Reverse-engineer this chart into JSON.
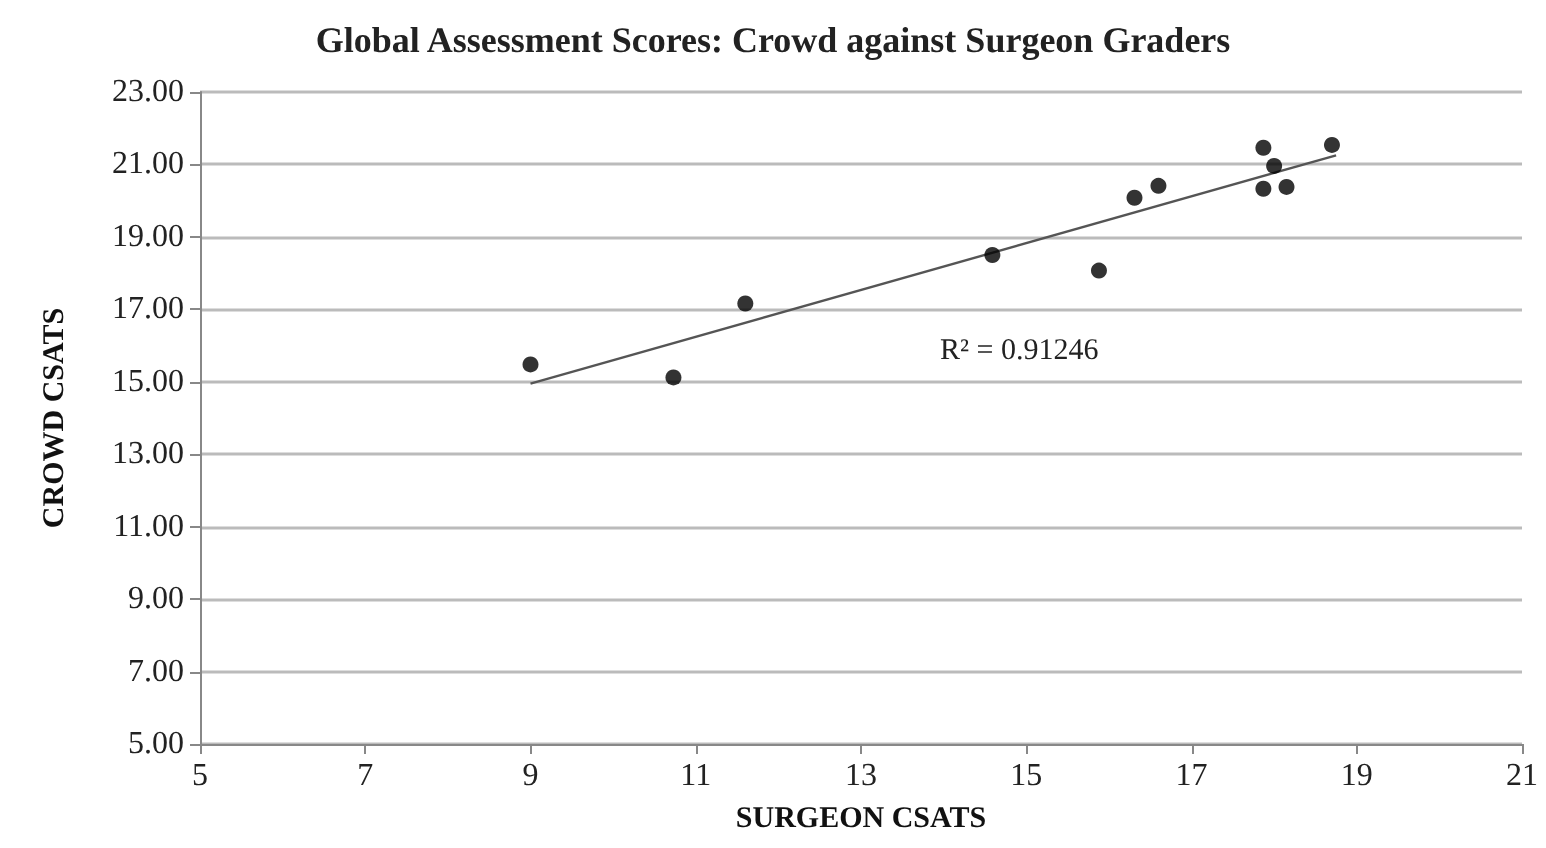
{
  "chart_data": {
    "type": "scatter",
    "title": "Global Assessment Scores: Crowd against Surgeon Graders",
    "xlabel": "SURGEON CSATS",
    "ylabel": "CROWD CSATS",
    "series": [
      {
        "color": "#000000",
        "marker": "circle",
        "x": [
          9.0,
          10.73,
          11.6,
          14.59,
          15.88,
          16.31,
          16.6,
          17.87,
          17.87,
          18.0,
          18.15,
          18.7
        ],
        "values": [
          15.48,
          15.12,
          17.16,
          18.5,
          18.07,
          20.08,
          20.41,
          21.46,
          20.33,
          20.96,
          20.38,
          21.54
        ]
      },
      {
        "type": "line",
        "color": "#555555",
        "marker": "none",
        "x": [
          9.0,
          18.75
        ],
        "values": [
          14.95,
          21.25
        ]
      }
    ],
    "annotations": [
      "R² = 0.91246"
    ],
    "xlim": [
      5,
      21
    ],
    "xticks": [
      5,
      7,
      9,
      11,
      13,
      15,
      17,
      19,
      21
    ],
    "ylim": [
      5,
      23
    ],
    "yticks": [
      {
        "value": 5,
        "label": "5.00"
      },
      {
        "value": 7,
        "label": "7.00"
      },
      {
        "value": 9,
        "label": "9.00"
      },
      {
        "value": 11,
        "label": "11.00"
      },
      {
        "value": 13,
        "label": "13.00"
      },
      {
        "value": 15,
        "label": "15.00"
      },
      {
        "value": 17,
        "label": "17.00"
      },
      {
        "value": 19,
        "label": "19.00"
      },
      {
        "value": 21,
        "label": "21.00"
      },
      {
        "value": 23,
        "label": "23.00"
      }
    ],
    "grid": "y"
  }
}
